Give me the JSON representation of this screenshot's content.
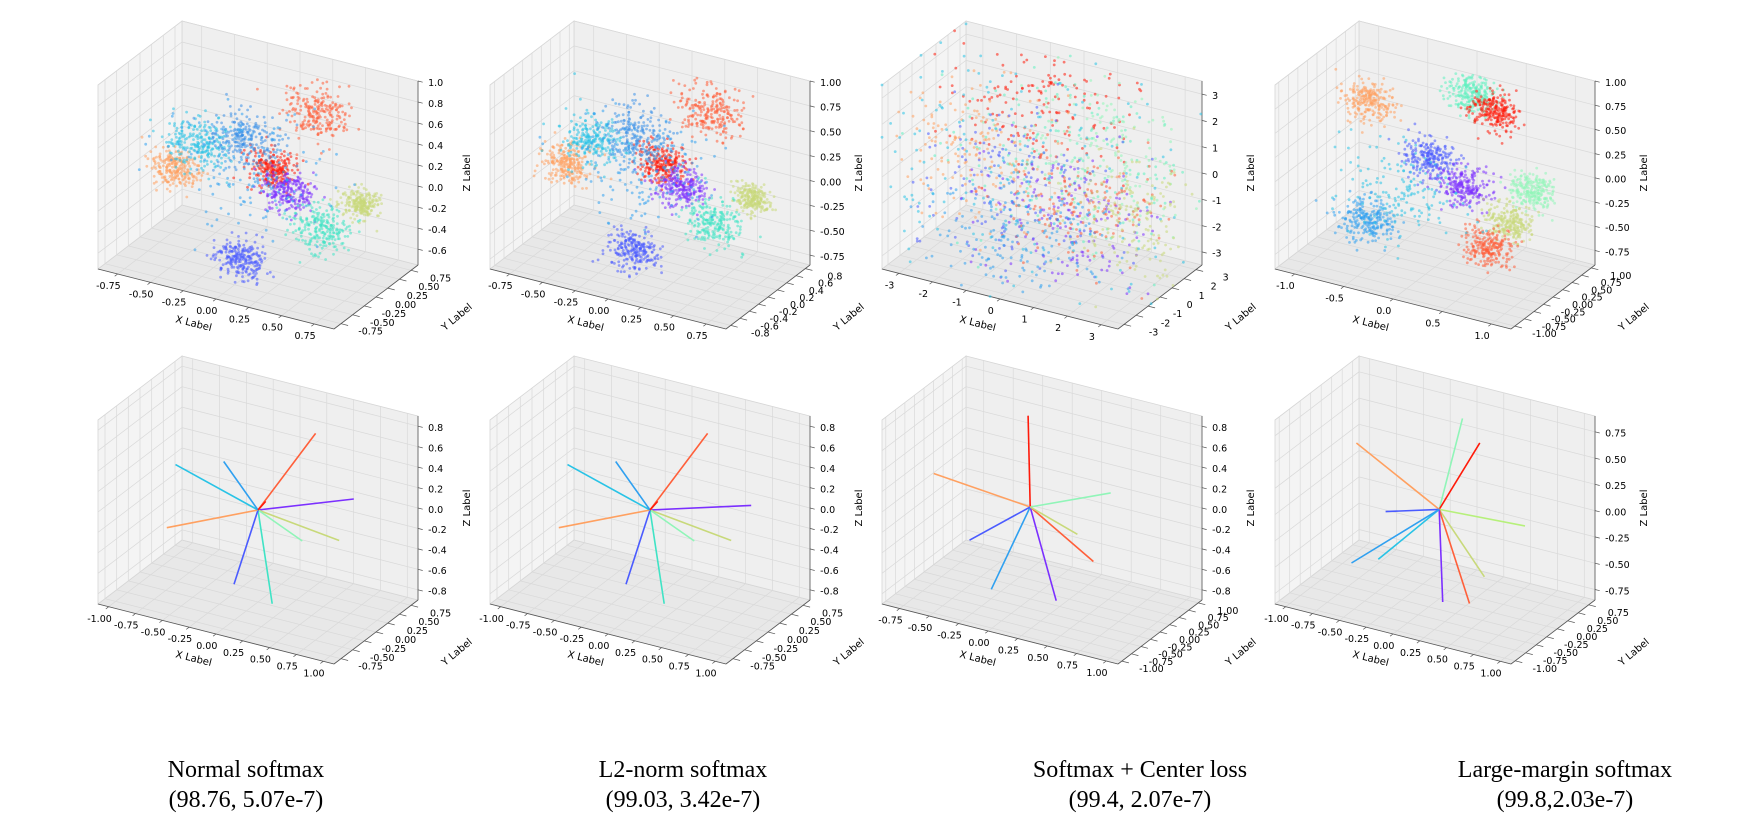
{
  "captions": [
    {
      "name": "Normal softmax",
      "metrics": "(98.76, 5.07e-7)"
    },
    {
      "name": "L2-norm softmax",
      "metrics": "(99.03, 3.42e-7)"
    },
    {
      "name": "Softmax + Center loss",
      "metrics": "(99.4, 2.07e-7)"
    },
    {
      "name": "Large-margin softmax",
      "metrics": "(99.8,2.03e-7)"
    }
  ],
  "chart_data": [
    {
      "type": "scatter",
      "kind": "scatter3d",
      "row": 0,
      "col": 0,
      "xlabel": "X Label",
      "ylabel": "Y Label",
      "zlabel": "Z Label",
      "x_ticks": [
        "-0.75",
        "-0.50",
        "-0.25",
        "0.00",
        "0.25",
        "0.50",
        "0.75"
      ],
      "y_ticks": [
        "-0.75",
        "-0.50",
        "-0.25",
        "0.00",
        "0.25",
        "0.50",
        "0.75"
      ],
      "z_ticks": [
        "-0.6",
        "-0.4",
        "-0.2",
        "0.0",
        "0.2",
        "0.4",
        "0.6",
        "0.8",
        "1.0"
      ],
      "xlim": [
        -0.9,
        0.9
      ],
      "ylim": [
        -0.9,
        0.9
      ],
      "zlim": [
        -0.75,
        1.0
      ],
      "clusters": [
        {
          "color": "#ff5f3a",
          "center": [
            0.35,
            0.3,
            0.72
          ],
          "spread": 0.13
        },
        {
          "color": "#ff1a0a",
          "center": [
            0.1,
            0.0,
            0.22
          ],
          "spread": 0.1
        },
        {
          "color": "#7b2fff",
          "center": [
            0.25,
            -0.05,
            0.05
          ],
          "spread": 0.1
        },
        {
          "color": "#c8d97a",
          "center": [
            0.75,
            0.1,
            0.05
          ],
          "spread": 0.07
        },
        {
          "color": "#3fe3c5",
          "center": [
            0.55,
            -0.2,
            -0.15
          ],
          "spread": 0.12
        },
        {
          "color": "#4a5bff",
          "center": [
            0.0,
            -0.35,
            -0.55
          ],
          "spread": 0.1
        },
        {
          "color": "#ffa060",
          "center": [
            -0.65,
            0.05,
            -0.05
          ],
          "spread": 0.1
        },
        {
          "color": "#28c3e6",
          "center": [
            -0.45,
            0.0,
            0.28
          ],
          "spread": 0.13
        },
        {
          "color": "#3a8fe8",
          "center": [
            -0.2,
            0.3,
            0.3
          ],
          "spread": 0.14
        },
        {
          "color": "#2fa0f0",
          "center": [
            -0.1,
            0.1,
            0.1
          ],
          "spread": 0.3
        }
      ]
    },
    {
      "type": "scatter",
      "kind": "scatter3d",
      "row": 0,
      "col": 1,
      "xlabel": "X Label",
      "ylabel": "Y Label",
      "zlabel": "Z Label",
      "x_ticks": [
        "-0.75",
        "-0.50",
        "-0.25",
        "0.00",
        "0.25",
        "0.50",
        "0.75"
      ],
      "y_ticks": [
        "-0.8",
        "-0.6",
        "-0.4",
        "-0.2",
        "0.0",
        "0.2",
        "0.4",
        "0.6",
        "0.8"
      ],
      "z_ticks": [
        "-0.75",
        "-0.50",
        "-0.25",
        "0.00",
        "0.25",
        "0.50",
        "0.75",
        "1.00"
      ],
      "xlim": [
        -0.9,
        0.9
      ],
      "ylim": [
        -0.9,
        0.9
      ],
      "zlim": [
        -0.85,
        1.0
      ],
      "clusters": [
        {
          "color": "#ff5f3a",
          "center": [
            0.35,
            0.3,
            0.72
          ],
          "spread": 0.13
        },
        {
          "color": "#ff1a0a",
          "center": [
            0.1,
            0.0,
            0.22
          ],
          "spread": 0.1
        },
        {
          "color": "#7b2fff",
          "center": [
            0.25,
            -0.05,
            0.05
          ],
          "spread": 0.1
        },
        {
          "color": "#c8d97a",
          "center": [
            0.75,
            0.1,
            0.05
          ],
          "spread": 0.07
        },
        {
          "color": "#3fe3c5",
          "center": [
            0.55,
            -0.2,
            -0.15
          ],
          "spread": 0.12
        },
        {
          "color": "#4a5bff",
          "center": [
            0.0,
            -0.35,
            -0.55
          ],
          "spread": 0.1
        },
        {
          "color": "#ffa060",
          "center": [
            -0.65,
            0.05,
            -0.05
          ],
          "spread": 0.1
        },
        {
          "color": "#28c3e6",
          "center": [
            -0.45,
            0.0,
            0.28
          ],
          "spread": 0.13
        },
        {
          "color": "#3a8fe8",
          "center": [
            -0.2,
            0.3,
            0.3
          ],
          "spread": 0.14
        },
        {
          "color": "#2fa0f0",
          "center": [
            -0.1,
            0.1,
            0.1
          ],
          "spread": 0.3
        }
      ]
    },
    {
      "type": "scatter",
      "kind": "scatter3d",
      "row": 0,
      "col": 2,
      "xlabel": "X Label",
      "ylabel": "Y Label",
      "zlabel": "Z Label",
      "x_ticks": [
        "-3",
        "-2",
        "-1",
        "0",
        "1",
        "2",
        "3"
      ],
      "y_ticks": [
        "-3",
        "-2",
        "-1",
        "0",
        "1",
        "2",
        "3"
      ],
      "z_ticks": [
        "-3",
        "-2",
        "-1",
        "0",
        "1",
        "2",
        "3"
      ],
      "xlim": [
        -3.5,
        3.5
      ],
      "ylim": [
        -3.5,
        3.5
      ],
      "zlim": [
        -3.5,
        3.5
      ],
      "clusters": [
        {
          "color": "#ff1a0a",
          "center": [
            -0.3,
            0.5,
            2.2
          ],
          "spread": 0.35
        },
        {
          "color": "#90f5b8",
          "center": [
            1.8,
            0.6,
            1.2
          ],
          "spread": 0.4
        },
        {
          "color": "#5ef0c0",
          "center": [
            0.5,
            0.3,
            0.6
          ],
          "spread": 0.45
        },
        {
          "color": "#ffa060",
          "center": [
            -2.2,
            0.0,
            0.3
          ],
          "spread": 0.35
        },
        {
          "color": "#4a5bff",
          "center": [
            -0.5,
            -0.3,
            -0.6
          ],
          "spread": 0.4
        },
        {
          "color": "#7b2fff",
          "center": [
            0.9,
            -0.5,
            -1.1
          ],
          "spread": 0.35
        },
        {
          "color": "#ff5f3a",
          "center": [
            1.2,
            -0.2,
            -0.6
          ],
          "spread": 0.3
        },
        {
          "color": "#c8d97a",
          "center": [
            2.6,
            0.2,
            -1.0
          ],
          "spread": 0.3
        },
        {
          "color": "#2fa0f0",
          "center": [
            -0.6,
            -0.6,
            -2.5
          ],
          "spread": 0.35
        },
        {
          "color": "#28c3e6",
          "center": [
            -0.4,
            0.0,
            0.0
          ],
          "spread": 0.7
        }
      ]
    },
    {
      "type": "scatter",
      "kind": "scatter3d",
      "row": 0,
      "col": 3,
      "xlabel": "X Label",
      "ylabel": "Y Label",
      "zlabel": "Z Label",
      "x_ticks": [
        "-1.0",
        "-0.5",
        "0.0",
        "0.5",
        "1.0"
      ],
      "y_ticks": [
        "-1.00",
        "-0.75",
        "-0.50",
        "-0.25",
        "0.00",
        "0.25",
        "0.50",
        "0.75",
        "1.00"
      ],
      "z_ticks": [
        "-0.75",
        "-0.50",
        "-0.25",
        "0.00",
        "0.25",
        "0.50",
        "0.75",
        "1.00"
      ],
      "xlim": [
        -1.2,
        1.2
      ],
      "ylim": [
        -1.1,
        1.1
      ],
      "zlim": [
        -0.9,
        1.0
      ],
      "clusters": [
        {
          "color": "#5ef0c0",
          "center": [
            0.25,
            0.3,
            0.85
          ],
          "spread": 0.1
        },
        {
          "color": "#ff1a0a",
          "center": [
            0.5,
            0.3,
            0.75
          ],
          "spread": 0.1
        },
        {
          "color": "#ffa060",
          "center": [
            -0.75,
            0.2,
            0.55
          ],
          "spread": 0.1
        },
        {
          "color": "#90f5b8",
          "center": [
            0.95,
            0.1,
            0.1
          ],
          "spread": 0.09
        },
        {
          "color": "#4a5bff",
          "center": [
            -0.05,
            0.0,
            0.2
          ],
          "spread": 0.11
        },
        {
          "color": "#7b2fff",
          "center": [
            0.3,
            0.0,
            0.0
          ],
          "spread": 0.1
        },
        {
          "color": "#c8d97a",
          "center": [
            0.75,
            0.0,
            -0.25
          ],
          "spread": 0.09
        },
        {
          "color": "#ff5f3a",
          "center": [
            0.55,
            0.0,
            -0.55
          ],
          "spread": 0.1
        },
        {
          "color": "#2fa0f0",
          "center": [
            -0.7,
            0.0,
            -0.6
          ],
          "spread": 0.11
        },
        {
          "color": "#28c3e6",
          "center": [
            -0.3,
            0.0,
            -0.2
          ],
          "spread": 0.25
        }
      ]
    },
    {
      "type": "line",
      "kind": "vectors3d",
      "row": 1,
      "col": 0,
      "xlabel": "X Label",
      "ylabel": "Y Label",
      "zlabel": "Z Label",
      "x_ticks": [
        "-1.00",
        "-0.75",
        "-0.50",
        "-0.25",
        "0.00",
        "0.25",
        "0.50",
        "0.75",
        "1.00"
      ],
      "y_ticks": [
        "-0.75",
        "-0.50",
        "-0.25",
        "0.00",
        "0.25",
        "0.50",
        "0.75"
      ],
      "z_ticks": [
        "-0.8",
        "-0.6",
        "-0.4",
        "-0.2",
        "0.0",
        "0.2",
        "0.4",
        "0.6",
        "0.8"
      ],
      "xlim": [
        -1.1,
        1.1
      ],
      "ylim": [
        -0.9,
        0.9
      ],
      "zlim": [
        -0.9,
        0.9
      ],
      "vectors": [
        {
          "color": "#ff5f3a",
          "end": [
            0.45,
            0.2,
            0.8
          ]
        },
        {
          "color": "#7b2fff",
          "end": [
            0.85,
            0.1,
            0.3
          ]
        },
        {
          "color": "#c8d97a",
          "end": [
            0.8,
            -0.1,
            -0.05
          ]
        },
        {
          "color": "#90f5b8",
          "end": [
            0.5,
            -0.2,
            -0.1
          ]
        },
        {
          "color": "#3fe3c5",
          "end": [
            0.35,
            -0.5,
            -0.65
          ]
        },
        {
          "color": "#4a5bff",
          "end": [
            -0.05,
            -0.4,
            -0.6
          ]
        },
        {
          "color": "#ffa060",
          "end": [
            -0.85,
            0.0,
            -0.4
          ]
        },
        {
          "color": "#28c3e6",
          "end": [
            -0.9,
            0.3,
            0.1
          ]
        },
        {
          "color": "#2fa0f0",
          "end": [
            -0.45,
            0.3,
            0.25
          ]
        },
        {
          "color": "#ff1a0a",
          "end": [
            0.05,
            0.05,
            0.08
          ]
        }
      ]
    },
    {
      "type": "line",
      "kind": "vectors3d",
      "row": 1,
      "col": 1,
      "xlabel": "X Label",
      "ylabel": "Y Label",
      "zlabel": "Z Label",
      "x_ticks": [
        "-1.00",
        "-0.75",
        "-0.50",
        "-0.25",
        "0.00",
        "0.25",
        "0.50",
        "0.75",
        "1.00"
      ],
      "y_ticks": [
        "-0.75",
        "-0.50",
        "-0.25",
        "0.00",
        "0.25",
        "0.50",
        "0.75"
      ],
      "z_ticks": [
        "-0.8",
        "-0.6",
        "-0.4",
        "-0.2",
        "0.0",
        "0.2",
        "0.4",
        "0.6",
        "0.8"
      ],
      "xlim": [
        -1.1,
        1.1
      ],
      "ylim": [
        -0.9,
        0.9
      ],
      "zlim": [
        -0.9,
        0.9
      ],
      "vectors": [
        {
          "color": "#ff5f3a",
          "end": [
            0.45,
            0.2,
            0.8
          ]
        },
        {
          "color": "#7b2fff",
          "end": [
            0.9,
            0.1,
            0.25
          ]
        },
        {
          "color": "#c8d97a",
          "end": [
            0.8,
            -0.1,
            -0.05
          ]
        },
        {
          "color": "#90f5b8",
          "end": [
            0.5,
            -0.2,
            -0.1
          ]
        },
        {
          "color": "#3fe3c5",
          "end": [
            0.35,
            -0.5,
            -0.65
          ]
        },
        {
          "color": "#4a5bff",
          "end": [
            -0.05,
            -0.4,
            -0.6
          ]
        },
        {
          "color": "#ffa060",
          "end": [
            -0.85,
            0.0,
            -0.4
          ]
        },
        {
          "color": "#28c3e6",
          "end": [
            -0.9,
            0.3,
            0.1
          ]
        },
        {
          "color": "#2fa0f0",
          "end": [
            -0.45,
            0.3,
            0.25
          ]
        },
        {
          "color": "#ff1a0a",
          "end": [
            0.05,
            0.05,
            0.08
          ]
        }
      ]
    },
    {
      "type": "line",
      "kind": "vectors3d",
      "row": 1,
      "col": 2,
      "xlabel": "X Label",
      "ylabel": "Y Label",
      "zlabel": "Z Label",
      "x_ticks": [
        "-0.75",
        "-0.50",
        "-0.25",
        "0.00",
        "0.25",
        "0.50",
        "0.75",
        "1.00"
      ],
      "y_ticks": [
        "-1.00",
        "-0.75",
        "-0.50",
        "-0.25",
        "0.00",
        "0.25",
        "0.50",
        "0.75",
        "1.00"
      ],
      "z_ticks": [
        "-0.8",
        "-0.6",
        "-0.4",
        "-0.2",
        "0.0",
        "0.2",
        "0.4",
        "0.6",
        "0.8"
      ],
      "xlim": [
        -0.9,
        1.1
      ],
      "ylim": [
        -1.1,
        1.1
      ],
      "zlim": [
        -0.9,
        0.9
      ],
      "vectors": [
        {
          "color": "#ff1a0a",
          "end": [
            -0.05,
            0.1,
            0.85
          ]
        },
        {
          "color": "#90f5b8",
          "end": [
            0.65,
            0.1,
            0.3
          ]
        },
        {
          "color": "#ffa060",
          "end": [
            -0.85,
            0.1,
            0.05
          ]
        },
        {
          "color": "#ff5f3a",
          "end": [
            0.6,
            -0.2,
            -0.3
          ]
        },
        {
          "color": "#7b2fff",
          "end": [
            0.35,
            -0.4,
            -0.7
          ]
        },
        {
          "color": "#2fa0f0",
          "end": [
            -0.2,
            -0.4,
            -0.75
          ]
        },
        {
          "color": "#4a5bff",
          "end": [
            -0.45,
            -0.2,
            -0.4
          ]
        },
        {
          "color": "#c8d97a",
          "end": [
            0.4,
            0.0,
            -0.15
          ]
        }
      ]
    },
    {
      "type": "line",
      "kind": "vectors3d",
      "row": 1,
      "col": 3,
      "xlabel": "X Label",
      "ylabel": "Y Label",
      "zlabel": "Z Label",
      "x_ticks": [
        "-1.00",
        "-0.75",
        "-0.50",
        "-0.25",
        "0.00",
        "0.25",
        "0.50",
        "0.75",
        "1.00"
      ],
      "y_ticks": [
        "-1.00",
        "-0.75",
        "-0.50",
        "-0.25",
        "0.00",
        "0.25",
        "0.50",
        "0.75"
      ],
      "z_ticks": [
        "-0.75",
        "-0.50",
        "-0.25",
        "0.00",
        "0.25",
        "0.50",
        "0.75"
      ],
      "xlim": [
        -1.1,
        1.1
      ],
      "ylim": [
        -1.1,
        0.9
      ],
      "zlim": [
        -0.85,
        0.9
      ],
      "vectors": [
        {
          "color": "#90f5b8",
          "end": [
            0.1,
            0.3,
            0.8
          ]
        },
        {
          "color": "#ff1a0a",
          "end": [
            0.3,
            0.2,
            0.65
          ]
        },
        {
          "color": "#ffa060",
          "end": [
            -0.85,
            0.2,
            0.35
          ]
        },
        {
          "color": "#b6f07a",
          "end": [
            0.8,
            0.0,
            0.05
          ]
        },
        {
          "color": "#4a5bff",
          "end": [
            -0.5,
            0.0,
            -0.15
          ]
        },
        {
          "color": "#c8d97a",
          "end": [
            0.5,
            -0.2,
            -0.45
          ]
        },
        {
          "color": "#ff5f3a",
          "end": [
            0.4,
            -0.3,
            -0.7
          ]
        },
        {
          "color": "#7b2fff",
          "end": [
            0.15,
            -0.3,
            -0.75
          ]
        },
        {
          "color": "#28c3e6",
          "end": [
            -0.45,
            -0.3,
            -0.5
          ]
        },
        {
          "color": "#2fa0f0",
          "end": [
            -0.7,
            -0.3,
            -0.6
          ]
        }
      ]
    }
  ]
}
